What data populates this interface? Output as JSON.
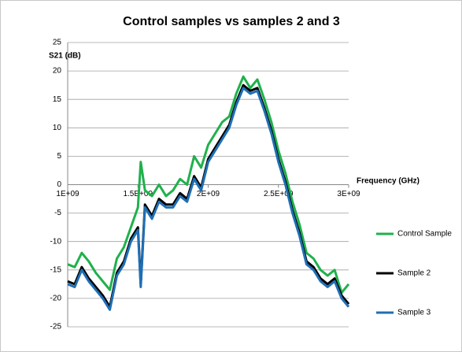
{
  "chart_data": {
    "type": "line",
    "title": "Control samples vs samples 2 and 3",
    "y_label": "S21 (dB)",
    "x_label": "Frequency (GHz)",
    "x": [
      1000000000.0,
      1050000000.0,
      1100000000.0,
      1150000000.0,
      1200000000.0,
      1250000000.0,
      1300000000.0,
      1350000000.0,
      1400000000.0,
      1450000000.0,
      1500000000.0,
      1520000000.0,
      1550000000.0,
      1600000000.0,
      1650000000.0,
      1700000000.0,
      1750000000.0,
      1800000000.0,
      1850000000.0,
      1900000000.0,
      1950000000.0,
      2000000000.0,
      2050000000.0,
      2100000000.0,
      2150000000.0,
      2200000000.0,
      2250000000.0,
      2300000000.0,
      2350000000.0,
      2400000000.0,
      2450000000.0,
      2500000000.0,
      2550000000.0,
      2600000000.0,
      2650000000.0,
      2700000000.0,
      2750000000.0,
      2800000000.0,
      2850000000.0,
      2900000000.0,
      2950000000.0,
      3000000000.0
    ],
    "series": [
      {
        "name": "Control Sample",
        "color": "#1fb14c",
        "values": [
          -14,
          -14.5,
          -12,
          -13.5,
          -15.5,
          -17,
          -18.5,
          -13,
          -11,
          -7.5,
          -4,
          4,
          -1,
          -2,
          0,
          -2,
          -1,
          1,
          0,
          5,
          3,
          7,
          9,
          11,
          12,
          16,
          19,
          17,
          18.5,
          15,
          11,
          6,
          2,
          -3,
          -7,
          -12,
          -13,
          -15,
          -16,
          -15,
          -19,
          -17.5
        ]
      },
      {
        "name": "Sample 2",
        "color": "#000000",
        "values": [
          -17,
          -17.5,
          -14.5,
          -16.5,
          -18,
          -19.5,
          -21.5,
          -15.5,
          -13.5,
          -9.5,
          -7.5,
          -17.5,
          -3.5,
          -5.5,
          -2.5,
          -3.5,
          -3.5,
          -1.5,
          -2.5,
          1.5,
          -0.5,
          4.5,
          6.5,
          8.5,
          10.5,
          14.5,
          17.5,
          16.5,
          17,
          13.5,
          9.5,
          4.5,
          0.5,
          -4.5,
          -8.5,
          -13.5,
          -14.5,
          -16.5,
          -17.5,
          -16.5,
          -19.5,
          -21
        ]
      },
      {
        "name": "Sample 3",
        "color": "#1f6fb4",
        "values": [
          -17.5,
          -18,
          -15,
          -17,
          -18.5,
          -20,
          -22,
          -16,
          -14,
          -10,
          -8,
          -18,
          -4,
          -6,
          -3,
          -4,
          -4,
          -2,
          -3,
          1,
          -1,
          4,
          6,
          8,
          10,
          14,
          17,
          16,
          16.5,
          13,
          9,
          4,
          0,
          -5,
          -9,
          -14,
          -15,
          -17,
          -18,
          -17,
          -20,
          -21.5
        ]
      }
    ],
    "xlim": [
      1000000000.0,
      3000000000.0
    ],
    "xticks": [
      {
        "value": 1000000000.0,
        "label": "1E+09"
      },
      {
        "value": 1500000000.0,
        "label": "1.5E+09"
      },
      {
        "value": 2000000000.0,
        "label": "2E+09"
      },
      {
        "value": 2500000000.0,
        "label": "2.5E+09"
      },
      {
        "value": 3000000000.0,
        "label": "3E+09"
      }
    ],
    "ylim": [
      -25,
      25
    ],
    "yticks": [
      -25,
      -20,
      -15,
      -10,
      -5,
      0,
      5,
      10,
      15,
      20,
      25
    ],
    "grid": true,
    "legend": "right"
  }
}
